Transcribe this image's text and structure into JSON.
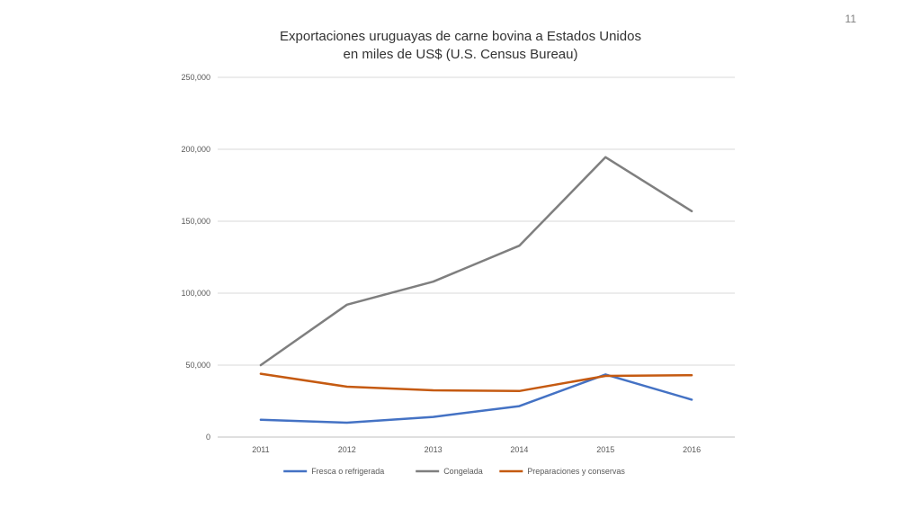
{
  "slide": {
    "page_number": "11"
  },
  "chart_data": {
    "type": "line",
    "title_lines": [
      "Exportaciones uruguayas de carne bovina a Estados Unidos",
      "en miles de US$ (U.S. Census Bureau)"
    ],
    "categories": [
      "2011",
      "2012",
      "2013",
      "2014",
      "2015",
      "2016"
    ],
    "y_ticks": [
      "0",
      "50,000",
      "100,000",
      "150,000",
      "200,000",
      "250,000"
    ],
    "ylim": [
      0,
      250000
    ],
    "grid": true,
    "legend_position": "bottom",
    "series": [
      {
        "name": "Fresca o refrigerada",
        "color": "#4472c4",
        "values": [
          12000,
          10000,
          14000,
          21500,
          43500,
          26000
        ]
      },
      {
        "name": "Congelada",
        "color": "#7f7f7f",
        "values": [
          50000,
          92000,
          108000,
          133000,
          194500,
          157000
        ]
      },
      {
        "name": "Preparaciones y conservas",
        "color": "#c55a11",
        "values": [
          44000,
          35000,
          32500,
          32000,
          42500,
          43000
        ]
      }
    ]
  }
}
